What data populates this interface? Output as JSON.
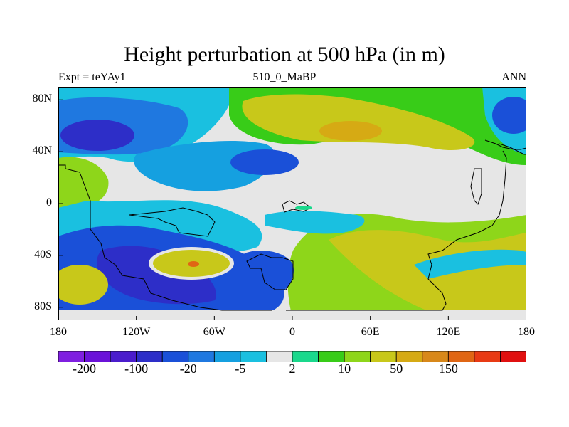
{
  "chart_data": {
    "type": "heatmap",
    "title": "Height perturbation at 500 hPa (in m)",
    "subtitle_left": "Expt = teYAy1",
    "subtitle_center": "510_0_MaBP",
    "subtitle_right": "ANN",
    "variable": "Height perturbation",
    "units": "m",
    "x_range": [
      -180,
      180
    ],
    "y_range": [
      -90,
      90
    ],
    "y_ticks": [
      {
        "label": "80N",
        "lat": 80
      },
      {
        "label": "40N",
        "lat": 40
      },
      {
        "label": "0",
        "lat": 0
      },
      {
        "label": "40S",
        "lat": -40
      },
      {
        "label": "80S",
        "lat": -80
      }
    ],
    "x_ticks": [
      {
        "label": "180",
        "lon": -180
      },
      {
        "label": "120W",
        "lon": -120
      },
      {
        "label": "60W",
        "lon": -60
      },
      {
        "label": "0",
        "lon": 0
      },
      {
        "label": "60E",
        "lon": 60
      },
      {
        "label": "120E",
        "lon": 120
      },
      {
        "label": "180",
        "lon": 180
      }
    ],
    "colorbar": {
      "colors": [
        "#7f1fe0",
        "#6a12d8",
        "#4a1ccc",
        "#2d2ec8",
        "#1a50d8",
        "#1f78e0",
        "#15a0e0",
        "#1ac0e0",
        "#e6e6e6",
        "#1ad88c",
        "#38cc18",
        "#8ed61a",
        "#c8c81a",
        "#d6aa14",
        "#d8881a",
        "#e06614",
        "#e83a14",
        "#e01010"
      ],
      "labels": [
        {
          "text": "-200",
          "boundary": 1
        },
        {
          "text": "-100",
          "boundary": 3
        },
        {
          "text": "-20",
          "boundary": 5
        },
        {
          "text": "-5",
          "boundary": 7
        },
        {
          "text": "2",
          "boundary": 9
        },
        {
          "text": "10",
          "boundary": 11
        },
        {
          "text": "50",
          "boundary": 13
        },
        {
          "text": "150",
          "boundary": 15
        }
      ]
    }
  }
}
